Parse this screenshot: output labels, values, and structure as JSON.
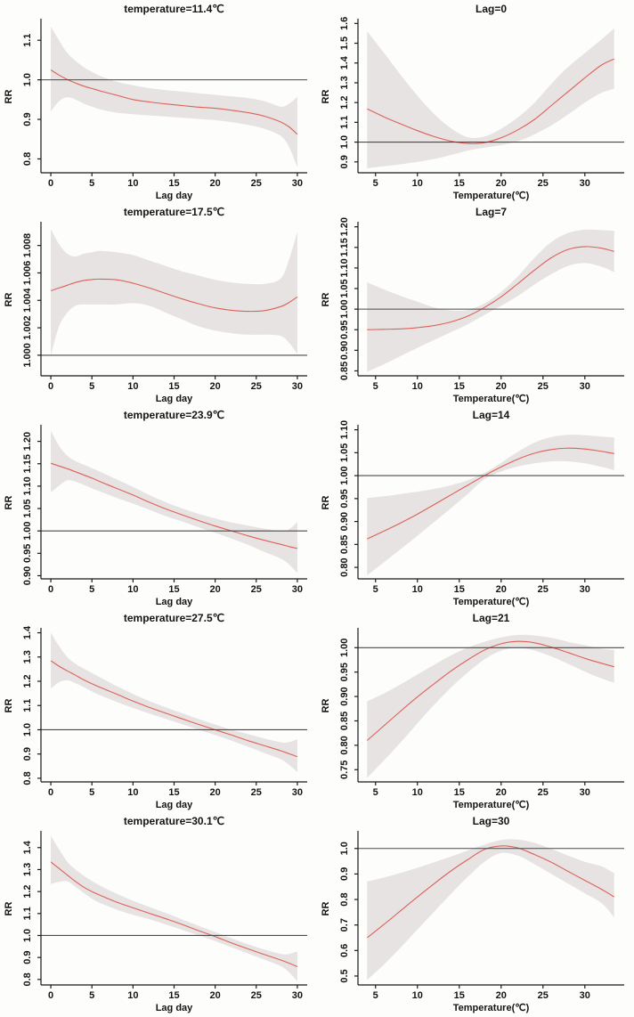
{
  "figure": {
    "description_colors": {
      "curve": "#df6058",
      "band": "#e6e3e2",
      "axis": "#1a1a1a",
      "refline": "#4a4a4a",
      "text": "#151515",
      "background": "#fdfdfc"
    },
    "grid": {
      "rows": 5,
      "cols": 2
    }
  },
  "chart_data": [
    {
      "type": "line",
      "title": "temperature=11.4℃",
      "xlabel": "Lag day",
      "ylabel": "RR",
      "xlim": [
        -1.2,
        31.2
      ],
      "ylim": [
        0.765,
        1.15
      ],
      "xticks": [
        0,
        5,
        10,
        15,
        20,
        25,
        30
      ],
      "xtick_labels": [
        "0",
        "5",
        "10",
        "15",
        "20",
        "25",
        "30"
      ],
      "yticks": [
        0.8,
        0.9,
        1.0,
        1.1
      ],
      "ytick_labels": [
        "0.8",
        "0.9",
        "1.0",
        "1.1"
      ],
      "refline": 1.0,
      "legend": "none",
      "grid_lines": "off",
      "x": [
        0,
        1,
        2,
        3,
        4,
        5,
        6,
        8,
        10,
        12,
        14,
        16,
        18,
        20,
        22,
        24,
        26,
        28,
        29,
        30
      ],
      "rr": [
        1.025,
        1.012,
        1.001,
        0.992,
        0.984,
        0.978,
        0.972,
        0.961,
        0.95,
        0.944,
        0.939,
        0.935,
        0.931,
        0.928,
        0.923,
        0.917,
        0.908,
        0.893,
        0.881,
        0.862
      ],
      "ci_upper": [
        1.135,
        1.1,
        1.068,
        1.048,
        1.032,
        1.02,
        1.01,
        0.995,
        0.986,
        0.979,
        0.974,
        0.97,
        0.966,
        0.962,
        0.958,
        0.954,
        0.946,
        0.932,
        0.94,
        0.957
      ],
      "ci_lower": [
        0.92,
        0.946,
        0.956,
        0.95,
        0.94,
        0.932,
        0.925,
        0.917,
        0.913,
        0.91,
        0.907,
        0.904,
        0.901,
        0.898,
        0.893,
        0.886,
        0.876,
        0.858,
        0.83,
        0.779
      ]
    },
    {
      "type": "line",
      "title": "Lag=0",
      "xlabel": "Temperature(℃)",
      "ylabel": "RR",
      "xlim": [
        2.9,
        34.7
      ],
      "ylim": [
        0.845,
        1.615
      ],
      "xticks": [
        5,
        10,
        15,
        20,
        25,
        30
      ],
      "xtick_labels": [
        "5",
        "10",
        "15",
        "20",
        "25",
        "30"
      ],
      "yticks": [
        0.9,
        1.0,
        1.1,
        1.2,
        1.3,
        1.4,
        1.5,
        1.6
      ],
      "ytick_labels": [
        "0.9",
        "1.0",
        "1.1",
        "1.2",
        "1.3",
        "1.4",
        "1.5",
        "1.6"
      ],
      "refline": 1.0,
      "legend": "none",
      "grid_lines": "off",
      "x": [
        4,
        6,
        8,
        10,
        12,
        14,
        16,
        18,
        20,
        22,
        24,
        26,
        28,
        30,
        32,
        33.5
      ],
      "rr": [
        1.168,
        1.128,
        1.092,
        1.058,
        1.028,
        1.005,
        0.993,
        0.997,
        1.022,
        1.062,
        1.115,
        1.185,
        1.255,
        1.325,
        1.39,
        1.42
      ],
      "ci_upper": [
        1.56,
        1.452,
        1.34,
        1.235,
        1.142,
        1.07,
        1.025,
        1.028,
        1.068,
        1.125,
        1.2,
        1.295,
        1.38,
        1.45,
        1.52,
        1.575
      ],
      "ci_lower": [
        0.868,
        0.878,
        0.888,
        0.9,
        0.915,
        0.935,
        0.957,
        0.972,
        0.985,
        1.005,
        1.04,
        1.085,
        1.14,
        1.2,
        1.25,
        1.27
      ]
    },
    {
      "type": "line",
      "title": "temperature=17.5℃",
      "xlabel": "Lag day",
      "ylabel": "RR",
      "xlim": [
        -1.2,
        31.2
      ],
      "ylim": [
        0.9985,
        1.0096
      ],
      "xticks": [
        0,
        5,
        10,
        15,
        20,
        25,
        30
      ],
      "xtick_labels": [
        "0",
        "5",
        "10",
        "15",
        "20",
        "25",
        "30"
      ],
      "yticks": [
        1.0,
        1.002,
        1.004,
        1.006,
        1.008
      ],
      "ytick_labels": [
        "1.000",
        "1.002",
        "1.004",
        "1.006",
        "1.008"
      ],
      "refline": 1.0,
      "legend": "none",
      "grid_lines": "off",
      "x": [
        0,
        1,
        2,
        3,
        4,
        5,
        6,
        8,
        10,
        12,
        14,
        16,
        18,
        20,
        22,
        24,
        26,
        28,
        29,
        30
      ],
      "rr": [
        1.0047,
        1.0049,
        1.0051,
        1.0053,
        1.00545,
        1.00552,
        1.00555,
        1.0055,
        1.00525,
        1.0049,
        1.0045,
        1.0041,
        1.00375,
        1.00345,
        1.00328,
        1.0032,
        1.00325,
        1.00355,
        1.00385,
        1.00425
      ],
      "ci_upper": [
        1.0092,
        1.0081,
        1.0074,
        1.0072,
        1.0074,
        1.0075,
        1.0076,
        1.0075,
        1.0073,
        1.0069,
        1.0065,
        1.0061,
        1.0058,
        1.0055,
        1.0053,
        1.0052,
        1.0052,
        1.0056,
        1.007,
        1.009
      ],
      "ci_lower": [
        1.0,
        1.0021,
        1.0031,
        1.0036,
        1.0037,
        1.0037,
        1.0037,
        1.0037,
        1.0038,
        1.0036,
        1.0031,
        1.0026,
        1.0021,
        1.0018,
        1.0016,
        1.0015,
        1.0015,
        1.0014,
        1.0009,
        1.0001
      ]
    },
    {
      "type": "line",
      "title": "Lag=7",
      "xlabel": "Temperature(℃)",
      "ylabel": "RR",
      "xlim": [
        2.9,
        34.7
      ],
      "ylim": [
        0.838,
        1.208
      ],
      "xticks": [
        5,
        10,
        15,
        20,
        25,
        30
      ],
      "xtick_labels": [
        "5",
        "10",
        "15",
        "20",
        "25",
        "30"
      ],
      "yticks": [
        0.85,
        0.9,
        0.95,
        1.0,
        1.05,
        1.1,
        1.15,
        1.2
      ],
      "ytick_labels": [
        "0.85",
        "0.90",
        "0.95",
        "1.00",
        "1.05",
        "1.10",
        "1.15",
        "1.20"
      ],
      "refline": 1.0,
      "legend": "none",
      "grid_lines": "off",
      "x": [
        4,
        6,
        8,
        10,
        12,
        14,
        16,
        18,
        20,
        22,
        24,
        26,
        28,
        30,
        32,
        33.5
      ],
      "rr": [
        0.95,
        0.951,
        0.952,
        0.955,
        0.96,
        0.969,
        0.983,
        1.004,
        1.03,
        1.062,
        1.095,
        1.125,
        1.145,
        1.152,
        1.148,
        1.14
      ],
      "ci_upper": [
        1.065,
        1.048,
        1.032,
        1.018,
        1.004,
        0.997,
        0.998,
        1.014,
        1.042,
        1.08,
        1.125,
        1.163,
        1.185,
        1.193,
        1.192,
        1.19
      ],
      "ci_lower": [
        0.848,
        0.866,
        0.886,
        0.906,
        0.925,
        0.944,
        0.963,
        0.986,
        1.008,
        1.032,
        1.06,
        1.085,
        1.105,
        1.112,
        1.103,
        1.09
      ]
    },
    {
      "type": "line",
      "title": "temperature=23.9℃",
      "xlabel": "Lag day",
      "ylabel": "RR",
      "xlim": [
        -1.2,
        31.2
      ],
      "ylim": [
        0.893,
        1.233
      ],
      "xticks": [
        0,
        5,
        10,
        15,
        20,
        25,
        30
      ],
      "xtick_labels": [
        "0",
        "5",
        "10",
        "15",
        "20",
        "25",
        "30"
      ],
      "yticks": [
        0.9,
        0.95,
        1.0,
        1.05,
        1.1,
        1.15,
        1.2
      ],
      "ytick_labels": [
        "0.90",
        "0.95",
        "1.00",
        "1.05",
        "1.10",
        "1.15",
        "1.20"
      ],
      "refline": 1.0,
      "legend": "none",
      "grid_lines": "off",
      "x": [
        0,
        1,
        2,
        3,
        4,
        5,
        6,
        8,
        10,
        12,
        14,
        16,
        18,
        20,
        22,
        24,
        26,
        28,
        29,
        30
      ],
      "rr": [
        1.151,
        1.145,
        1.139,
        1.132,
        1.125,
        1.118,
        1.11,
        1.095,
        1.08,
        1.064,
        1.049,
        1.036,
        1.023,
        1.011,
        1.0,
        0.989,
        0.979,
        0.97,
        0.965,
        0.961
      ],
      "ci_upper": [
        1.224,
        1.19,
        1.168,
        1.156,
        1.148,
        1.14,
        1.132,
        1.115,
        1.098,
        1.08,
        1.064,
        1.05,
        1.038,
        1.028,
        1.019,
        1.012,
        1.005,
        1.0,
        1.004,
        1.02
      ],
      "ci_lower": [
        1.086,
        1.101,
        1.113,
        1.11,
        1.103,
        1.095,
        1.088,
        1.074,
        1.061,
        1.047,
        1.033,
        1.021,
        1.008,
        0.996,
        0.983,
        0.969,
        0.953,
        0.938,
        0.925,
        0.906
      ]
    },
    {
      "type": "line",
      "title": "Lag=14",
      "xlabel": "Temperature(℃)",
      "ylabel": "RR",
      "xlim": [
        2.9,
        34.7
      ],
      "ylim": [
        0.775,
        1.107
      ],
      "xticks": [
        5,
        10,
        15,
        20,
        25,
        30
      ],
      "xtick_labels": [
        "5",
        "10",
        "15",
        "20",
        "25",
        "30"
      ],
      "yticks": [
        0.8,
        0.85,
        0.9,
        0.95,
        1.0,
        1.05,
        1.1
      ],
      "ytick_labels": [
        "0.80",
        "0.85",
        "0.90",
        "0.95",
        "1.00",
        "1.05",
        "1.10"
      ],
      "refline": 1.0,
      "legend": "none",
      "grid_lines": "off",
      "x": [
        4,
        6,
        8,
        10,
        12,
        14,
        16,
        18,
        20,
        22,
        24,
        26,
        28,
        30,
        32,
        33.5
      ],
      "rr": [
        0.862,
        0.879,
        0.897,
        0.916,
        0.937,
        0.958,
        0.979,
        1.0,
        1.019,
        1.036,
        1.049,
        1.057,
        1.06,
        1.058,
        1.053,
        1.048
      ],
      "ci_upper": [
        0.951,
        0.955,
        0.96,
        0.965,
        0.971,
        0.979,
        0.99,
        1.006,
        1.028,
        1.052,
        1.072,
        1.084,
        1.089,
        1.088,
        1.085,
        1.083
      ],
      "ci_lower": [
        0.783,
        0.811,
        0.84,
        0.869,
        0.899,
        0.929,
        0.96,
        0.992,
        1.009,
        1.02,
        1.027,
        1.031,
        1.031,
        1.027,
        1.019,
        1.012
      ]
    },
    {
      "type": "line",
      "title": "temperature=27.5℃",
      "xlabel": "Lag day",
      "ylabel": "RR",
      "xlim": [
        -1.2,
        31.2
      ],
      "ylim": [
        0.785,
        1.413
      ],
      "xticks": [
        0,
        5,
        10,
        15,
        20,
        25,
        30
      ],
      "xtick_labels": [
        "0",
        "5",
        "10",
        "15",
        "20",
        "25",
        "30"
      ],
      "yticks": [
        0.8,
        0.9,
        1.0,
        1.1,
        1.2,
        1.3,
        1.4
      ],
      "ytick_labels": [
        "0.8",
        "0.9",
        "1.0",
        "1.1",
        "1.2",
        "1.3",
        "1.4"
      ],
      "refline": 1.0,
      "legend": "none",
      "grid_lines": "off",
      "x": [
        0,
        1,
        2,
        3,
        4,
        5,
        6,
        8,
        10,
        12,
        14,
        16,
        18,
        20,
        22,
        24,
        26,
        28,
        29,
        30
      ],
      "rr": [
        1.285,
        1.262,
        1.243,
        1.225,
        1.206,
        1.19,
        1.175,
        1.147,
        1.118,
        1.092,
        1.068,
        1.045,
        1.022,
        1.0,
        0.978,
        0.955,
        0.934,
        0.913,
        0.901,
        0.889
      ],
      "ci_upper": [
        1.4,
        1.345,
        1.3,
        1.272,
        1.252,
        1.234,
        1.216,
        1.18,
        1.148,
        1.118,
        1.092,
        1.068,
        1.044,
        1.022,
        1.0,
        0.982,
        0.964,
        0.948,
        0.949,
        0.96
      ],
      "ci_lower": [
        1.17,
        1.196,
        1.204,
        1.192,
        1.176,
        1.158,
        1.142,
        1.115,
        1.09,
        1.067,
        1.045,
        1.023,
        1.0,
        0.978,
        0.955,
        0.93,
        0.904,
        0.878,
        0.855,
        0.825
      ]
    },
    {
      "type": "line",
      "title": "Lag=21",
      "xlabel": "Temperature(℃)",
      "ylabel": "RR",
      "xlim": [
        2.9,
        34.7
      ],
      "ylim": [
        0.725,
        1.037
      ],
      "xticks": [
        5,
        10,
        15,
        20,
        25,
        30
      ],
      "xtick_labels": [
        "5",
        "10",
        "15",
        "20",
        "25",
        "30"
      ],
      "yticks": [
        0.75,
        0.8,
        0.85,
        0.9,
        0.95,
        1.0
      ],
      "ytick_labels": [
        "0.75",
        "0.80",
        "0.85",
        "0.90",
        "0.95",
        "1.00"
      ],
      "refline": 1.0,
      "legend": "none",
      "grid_lines": "off",
      "x": [
        4,
        6,
        8,
        10,
        12,
        14,
        16,
        18,
        20,
        22,
        24,
        26,
        28,
        30,
        32,
        33.5
      ],
      "rr": [
        0.81,
        0.84,
        0.87,
        0.899,
        0.926,
        0.952,
        0.975,
        0.995,
        1.008,
        1.013,
        1.01,
        1.001,
        0.99,
        0.978,
        0.968,
        0.961
      ],
      "ci_upper": [
        0.89,
        0.906,
        0.925,
        0.945,
        0.965,
        0.984,
        1.0,
        1.012,
        1.021,
        1.026,
        1.025,
        1.02,
        1.012,
        1.005,
        0.998,
        0.995
      ],
      "ci_lower": [
        0.733,
        0.769,
        0.806,
        0.845,
        0.883,
        0.918,
        0.949,
        0.976,
        0.994,
        1.0,
        0.994,
        0.982,
        0.967,
        0.951,
        0.937,
        0.928
      ]
    },
    {
      "type": "line",
      "title": "temperature=30.1℃",
      "xlabel": "Lag day",
      "ylabel": "RR",
      "xlim": [
        -1.2,
        31.2
      ],
      "ylim": [
        0.775,
        1.468
      ],
      "xticks": [
        0,
        5,
        10,
        15,
        20,
        25,
        30
      ],
      "xtick_labels": [
        "0",
        "5",
        "10",
        "15",
        "20",
        "25",
        "30"
      ],
      "yticks": [
        0.8,
        0.9,
        1.0,
        1.1,
        1.2,
        1.3,
        1.4
      ],
      "ytick_labels": [
        "0.8",
        "0.9",
        "1.0",
        "1.1",
        "1.2",
        "1.3",
        "1.4"
      ],
      "refline": 1.0,
      "legend": "none",
      "grid_lines": "off",
      "x": [
        0,
        1,
        2,
        3,
        4,
        5,
        6,
        8,
        10,
        12,
        14,
        16,
        18,
        20,
        22,
        24,
        26,
        28,
        29,
        30
      ],
      "rr": [
        1.335,
        1.305,
        1.275,
        1.246,
        1.22,
        1.2,
        1.183,
        1.152,
        1.126,
        1.101,
        1.076,
        1.05,
        1.022,
        0.995,
        0.966,
        0.939,
        0.913,
        0.888,
        0.874,
        0.858
      ],
      "ci_upper": [
        1.455,
        1.392,
        1.336,
        1.3,
        1.272,
        1.248,
        1.227,
        1.19,
        1.158,
        1.13,
        1.102,
        1.073,
        1.044,
        1.016,
        0.987,
        0.96,
        0.936,
        0.916,
        0.916,
        0.927
      ],
      "ci_lower": [
        1.234,
        1.244,
        1.246,
        1.222,
        1.194,
        1.168,
        1.148,
        1.118,
        1.094,
        1.074,
        1.05,
        1.026,
        1.0,
        0.975,
        0.946,
        0.918,
        0.89,
        0.86,
        0.832,
        0.792
      ]
    },
    {
      "type": "line",
      "title": "Lag=30",
      "xlabel": "Temperature(℃)",
      "ylabel": "RR",
      "xlim": [
        2.9,
        34.7
      ],
      "ylim": [
        0.465,
        1.062
      ],
      "xticks": [
        5,
        10,
        15,
        20,
        25,
        30
      ],
      "xtick_labels": [
        "5",
        "10",
        "15",
        "20",
        "25",
        "30"
      ],
      "yticks": [
        0.5,
        0.6,
        0.7,
        0.8,
        0.9,
        1.0
      ],
      "ytick_labels": [
        "0.5",
        "0.6",
        "0.7",
        "0.8",
        "0.9",
        "1.0"
      ],
      "refline": 1.0,
      "legend": "none",
      "grid_lines": "off",
      "x": [
        4,
        6,
        8,
        10,
        12,
        14,
        16,
        18,
        20,
        22,
        24,
        26,
        28,
        30,
        32,
        33.5
      ],
      "rr": [
        0.65,
        0.702,
        0.756,
        0.81,
        0.862,
        0.912,
        0.956,
        0.996,
        1.01,
        1.002,
        0.976,
        0.946,
        0.91,
        0.875,
        0.84,
        0.81
      ],
      "ci_upper": [
        0.87,
        0.886,
        0.904,
        0.924,
        0.946,
        0.968,
        0.992,
        1.015,
        1.033,
        1.035,
        1.022,
        0.998,
        0.972,
        0.948,
        0.93,
        0.903
      ],
      "ci_lower": [
        0.485,
        0.545,
        0.612,
        0.682,
        0.752,
        0.822,
        0.888,
        0.948,
        0.982,
        0.972,
        0.938,
        0.9,
        0.862,
        0.824,
        0.786,
        0.73
      ]
    }
  ]
}
